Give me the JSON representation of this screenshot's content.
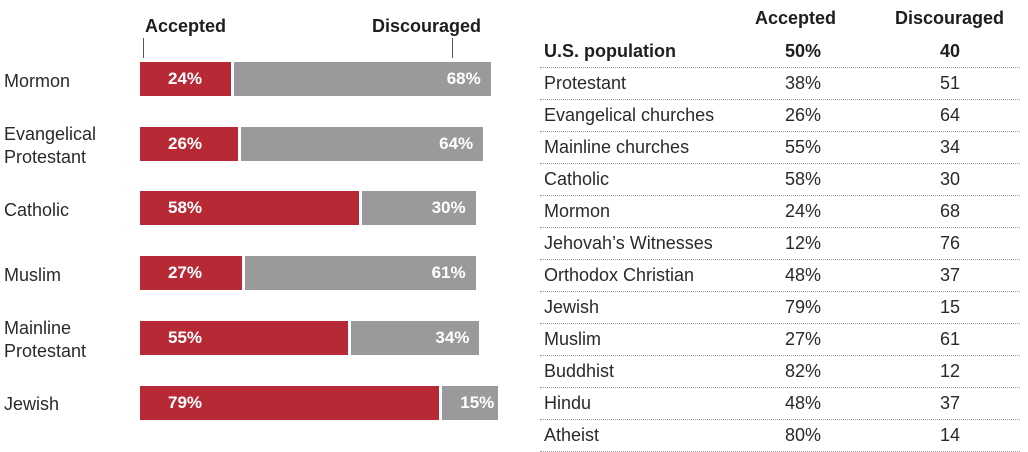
{
  "colors": {
    "accepted": "#b72a35",
    "discouraged": "#9a9a9c"
  },
  "chart_data": [
    {
      "type": "bar",
      "stacked": true,
      "orientation": "horizontal",
      "legend": [
        "Accepted",
        "Discouraged"
      ],
      "categories": [
        "Mormon",
        "Evangelical Protestant",
        "Catholic",
        "Muslim",
        "Mainline Protestant",
        "Jewish"
      ],
      "category_lines": [
        [
          "Mormon"
        ],
        [
          "Evangelical",
          "Protestant"
        ],
        [
          "Catholic"
        ],
        [
          "Muslim"
        ],
        [
          "Mainline",
          "Protestant"
        ],
        [
          "Jewish"
        ]
      ],
      "series": [
        {
          "name": "Accepted",
          "values": [
            24,
            26,
            58,
            27,
            55,
            79
          ],
          "labels": [
            "24%",
            "26%",
            "58%",
            "27%",
            "55%",
            "79%"
          ]
        },
        {
          "name": "Discouraged",
          "values": [
            68,
            64,
            30,
            61,
            34,
            15
          ],
          "labels": [
            "68%",
            "64%",
            "30%",
            "61%",
            "34%",
            "15%"
          ]
        }
      ]
    },
    {
      "type": "table",
      "columns": [
        "",
        "Accepted",
        "Discouraged"
      ],
      "rows": [
        [
          "U.S. population",
          "50%",
          "40"
        ],
        [
          "Protestant",
          "38%",
          "51"
        ],
        [
          "Evangelical churches",
          "26%",
          "64"
        ],
        [
          "Mainline churches",
          "55%",
          "34"
        ],
        [
          "Catholic",
          "58%",
          "30"
        ],
        [
          "Mormon",
          "24%",
          "68"
        ],
        [
          "Jehovah’s Witnesses",
          "12%",
          "76"
        ],
        [
          "Orthodox Christian",
          "48%",
          "37"
        ],
        [
          "Jewish",
          "79%",
          "15"
        ],
        [
          "Muslim",
          "27%",
          "61"
        ],
        [
          "Buddhist",
          "82%",
          "12"
        ],
        [
          "Hindu",
          "48%",
          "37"
        ],
        [
          "Atheist",
          "80%",
          "14"
        ]
      ]
    }
  ]
}
